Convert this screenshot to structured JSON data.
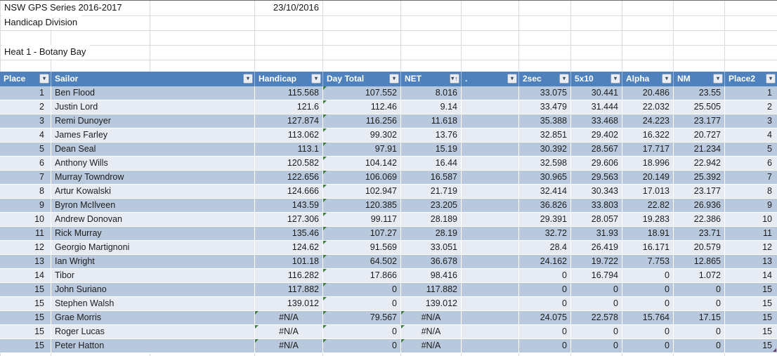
{
  "meta": {
    "title": "NSW GPS Series 2016-2017",
    "date": "23/10/2016",
    "division": "Handicap Division",
    "heat": "Heat 1 - Botany Bay"
  },
  "icons": {
    "filter_arrow": "▾",
    "sort_ascending_arrow": "↑"
  },
  "colors": {
    "header_bg": "#4f81bd",
    "header_text": "#ffffff",
    "band_dark": "#b8c9de",
    "band_light": "#e7ecf4",
    "gridline": "#d9dde3",
    "error_flag": "#3e7d3e",
    "corner_marker": "#6d3a62"
  },
  "table": {
    "headers": [
      {
        "label": "Place",
        "icon": "filter"
      },
      {
        "label": "Sailor",
        "icon": "filter"
      },
      {
        "label": "Handicap",
        "icon": "filter"
      },
      {
        "label": "Day Total",
        "icon": "filter"
      },
      {
        "label": "NET",
        "icon": "filter-sort-asc"
      },
      {
        "label": ".",
        "icon": "filter"
      },
      {
        "label": "2sec",
        "icon": "filter"
      },
      {
        "label": "5x10",
        "icon": "filter"
      },
      {
        "label": "Alpha",
        "icon": "filter"
      },
      {
        "label": "NM",
        "icon": "filter"
      },
      {
        "label": "Place2",
        "icon": "filter"
      }
    ],
    "rows": [
      {
        "cells": [
          "1",
          "Ben Flood",
          "115.568",
          "107.552",
          "8.016",
          "",
          "33.075",
          "30.441",
          "20.486",
          "23.55",
          "1"
        ],
        "err": [
          3
        ]
      },
      {
        "cells": [
          "2",
          "Justin Lord",
          "121.6",
          "112.46",
          "9.14",
          "",
          "33.479",
          "31.444",
          "22.032",
          "25.505",
          "2"
        ],
        "err": [
          3
        ]
      },
      {
        "cells": [
          "3",
          "Remi Dunoyer",
          "127.874",
          "116.256",
          "11.618",
          "",
          "35.388",
          "33.468",
          "24.223",
          "23.177",
          "3"
        ],
        "err": [
          3
        ]
      },
      {
        "cells": [
          "4",
          "James Farley",
          "113.062",
          "99.302",
          "13.76",
          "",
          "32.851",
          "29.402",
          "16.322",
          "20.727",
          "4"
        ],
        "err": [
          3
        ]
      },
      {
        "cells": [
          "5",
          "Dean Seal",
          "113.1",
          "97.91",
          "15.19",
          "",
          "30.392",
          "28.567",
          "17.717",
          "21.234",
          "5"
        ],
        "err": [
          3
        ]
      },
      {
        "cells": [
          "6",
          "Anthony Wills",
          "120.582",
          "104.142",
          "16.44",
          "",
          "32.598",
          "29.606",
          "18.996",
          "22.942",
          "6"
        ],
        "err": [
          3
        ]
      },
      {
        "cells": [
          "7",
          "Murray Towndrow",
          "122.656",
          "106.069",
          "16.587",
          "",
          "30.965",
          "29.563",
          "20.149",
          "25.392",
          "7"
        ],
        "err": [
          3
        ]
      },
      {
        "cells": [
          "8",
          "Artur Kowalski",
          "124.666",
          "102.947",
          "21.719",
          "",
          "32.414",
          "30.343",
          "17.013",
          "23.177",
          "8"
        ],
        "err": [
          3
        ]
      },
      {
        "cells": [
          "9",
          "Byron McIlveen",
          "143.59",
          "120.385",
          "23.205",
          "",
          "36.826",
          "33.803",
          "22.82",
          "26.936",
          "9"
        ],
        "err": [
          3
        ]
      },
      {
        "cells": [
          "10",
          "Andrew Donovan",
          "127.306",
          "99.117",
          "28.189",
          "",
          "29.391",
          "28.057",
          "19.283",
          "22.386",
          "10"
        ],
        "err": [
          3
        ]
      },
      {
        "cells": [
          "11",
          "Rick Murray",
          "135.46",
          "107.27",
          "28.19",
          "",
          "32.72",
          "31.93",
          "18.91",
          "23.71",
          "11"
        ],
        "err": [
          3
        ]
      },
      {
        "cells": [
          "12",
          "Georgio Martignoni",
          "124.62",
          "91.569",
          "33.051",
          "",
          "28.4",
          "26.419",
          "16.171",
          "20.579",
          "12"
        ],
        "err": [
          3
        ]
      },
      {
        "cells": [
          "13",
          "Ian Wright",
          "101.18",
          "64.502",
          "36.678",
          "",
          "24.162",
          "19.722",
          "7.753",
          "12.865",
          "13"
        ],
        "err": [
          3
        ]
      },
      {
        "cells": [
          "14",
          "Tibor",
          "116.282",
          "17.866",
          "98.416",
          "",
          "0",
          "16.794",
          "0",
          "1.072",
          "14"
        ],
        "err": [
          3
        ]
      },
      {
        "cells": [
          "15",
          "John Suriano",
          "117.882",
          "0",
          "117.882",
          "",
          "0",
          "0",
          "0",
          "0",
          "15"
        ],
        "err": [
          3
        ]
      },
      {
        "cells": [
          "15",
          "Stephen Walsh",
          "139.012",
          "0",
          "139.012",
          "",
          "0",
          "0",
          "0",
          "0",
          "15"
        ],
        "err": [
          3
        ]
      },
      {
        "cells": [
          "15",
          "Grae Morris",
          "#N/A",
          "79.567",
          "#N/A",
          "",
          "24.075",
          "22.578",
          "15.764",
          "17.15",
          "15"
        ],
        "err": [
          2,
          3,
          4
        ]
      },
      {
        "cells": [
          "15",
          "Roger Lucas",
          "#N/A",
          "0",
          "#N/A",
          "",
          "0",
          "0",
          "0",
          "0",
          "15"
        ],
        "err": [
          2,
          3,
          4
        ]
      },
      {
        "cells": [
          "15",
          "Peter Hatton",
          "#N/A",
          "0",
          "#N/A",
          "",
          "0",
          "0",
          "0",
          "0",
          "15"
        ],
        "err": [
          2,
          3,
          4
        ],
        "corner": true
      }
    ]
  }
}
